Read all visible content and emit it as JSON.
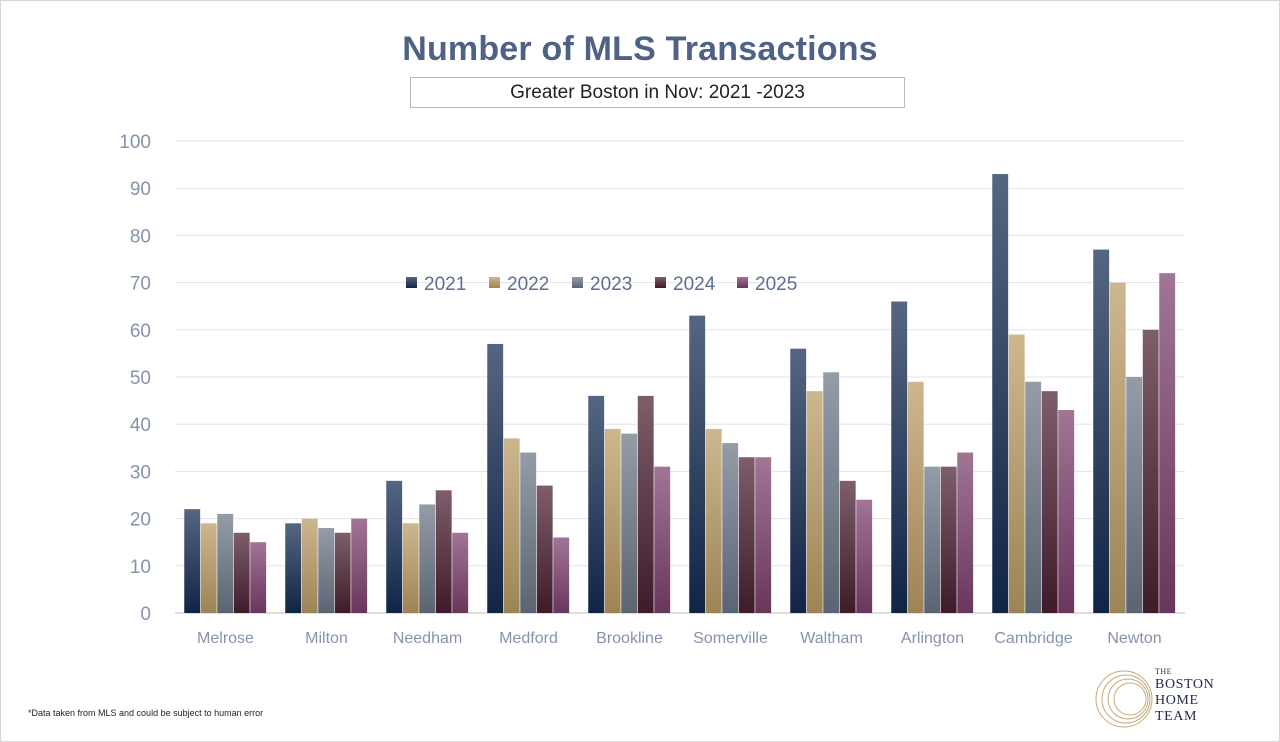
{
  "header": {
    "title": "Number of MLS Transactions",
    "subtitle": "Greater Boston in Nov: 2021 -2023"
  },
  "footnote": "*Data taken from MLS and could be subject to human error",
  "logo": {
    "the": "THE",
    "line1": "BOSTON",
    "line2": "HOME",
    "line3": "TEAM",
    "mark": "concentric-circles-logo"
  },
  "colors": {
    "2021": "#132a52",
    "2022": "#b99b64",
    "2023": "#6b7686",
    "2024": "#4a2030",
    "2025": "#7b3f6c"
  },
  "chart_data": {
    "type": "bar",
    "title": "Number of MLS Transactions",
    "subtitle": "Greater Boston in Nov: 2021 -2023",
    "categories": [
      "Melrose",
      "Milton",
      "Needham",
      "Medford",
      "Brookline",
      "Somerville",
      "Waltham",
      "Arlington",
      "Cambridge",
      "Newton"
    ],
    "series": [
      {
        "name": "2021",
        "values": [
          22,
          19,
          28,
          57,
          46,
          63,
          56,
          66,
          93,
          77
        ]
      },
      {
        "name": "2022",
        "values": [
          19,
          20,
          19,
          37,
          39,
          39,
          47,
          49,
          59,
          70
        ]
      },
      {
        "name": "2023",
        "values": [
          21,
          18,
          23,
          34,
          38,
          36,
          51,
          31,
          49,
          50
        ]
      },
      {
        "name": "2024",
        "values": [
          17,
          17,
          26,
          27,
          46,
          33,
          28,
          31,
          47,
          60
        ]
      },
      {
        "name": "2025",
        "values": [
          15,
          20,
          17,
          16,
          31,
          33,
          24,
          34,
          43,
          72
        ]
      }
    ],
    "yticks": [
      0,
      10,
      20,
      30,
      40,
      50,
      60,
      70,
      80,
      90,
      100
    ],
    "ylim": [
      0,
      100
    ],
    "grid": true,
    "legend_position": "top-center"
  }
}
